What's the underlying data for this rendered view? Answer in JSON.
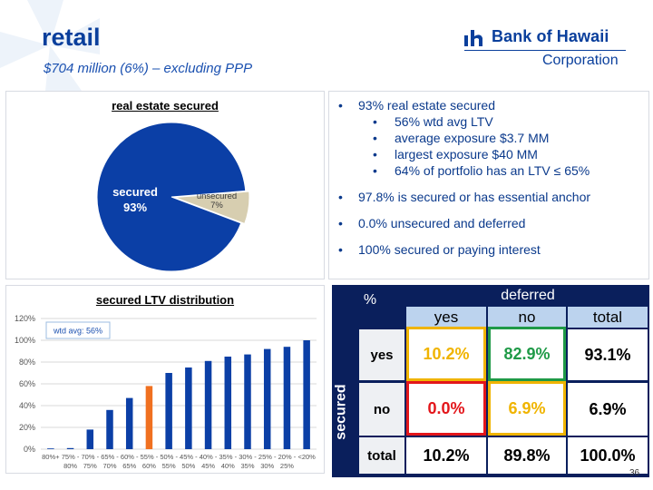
{
  "header": {
    "title": "retail",
    "subtitle": "$704 million (6%) – excluding PPP"
  },
  "logo": {
    "name": "Bank of Hawaii",
    "corporation": "Corporation"
  },
  "bullets": [
    {
      "text": "93% real estate secured",
      "sub": [
        "56% wtd avg LTV",
        "average exposure $3.7 MM",
        "largest exposure $40 MM",
        "64% of portfolio has an LTV ≤ 65%"
      ]
    },
    {
      "text": "97.8% is secured or has essential anchor",
      "sub": []
    },
    {
      "text": "0.0% unsecured and deferred",
      "sub": []
    },
    {
      "text": "100% secured or paying interest",
      "sub": []
    }
  ],
  "chart_data": [
    {
      "type": "pie",
      "title": "real estate secured",
      "slices": [
        {
          "label": "secured",
          "value": 93,
          "value_label": "93%",
          "color": "#0b3fa6"
        },
        {
          "label": "unsecured",
          "value": 7,
          "value_label": "7%",
          "color": "#d7ceb0"
        }
      ]
    },
    {
      "type": "bar",
      "title": "secured LTV distribution",
      "categories": [
        "80%+",
        "75% - 80%",
        "70% - 75%",
        "65% - 70%",
        "60% - 65%",
        "55% - 60%",
        "50% - 55%",
        "45% - 50%",
        "40% - 45%",
        "35% - 40%",
        "30% - 35%",
        "25% - 30%",
        "20% - 25%",
        "<20%"
      ],
      "tick_top": [
        "80%+",
        "75% -",
        "70% -",
        "65% -",
        "60% -",
        "55% -",
        "50% -",
        "45% -",
        "40% -",
        "35% -",
        "30% -",
        "25% -",
        "20% -",
        "<20%"
      ],
      "tick_bottom": [
        "",
        "80%",
        "75%",
        "70%",
        "65%",
        "60%",
        "55%",
        "50%",
        "45%",
        "40%",
        "35%",
        "30%",
        "25%",
        ""
      ],
      "values": [
        0,
        1,
        18,
        36,
        47,
        58,
        70,
        75,
        81,
        85,
        87,
        92,
        94,
        100
      ],
      "highlight_index": 5,
      "bar_color": "#0b3fa6",
      "highlight_color": "#f07020",
      "ylim": [
        0,
        120
      ],
      "yticks": [
        "0%",
        "20%",
        "40%",
        "60%",
        "80%",
        "100%",
        "120%"
      ],
      "grid": true,
      "annotation": "wtd avg: 56%"
    }
  ],
  "matrix": {
    "corner": "%",
    "col_group": "deferred",
    "row_group": "secured",
    "col_headers": [
      "yes",
      "no",
      "total"
    ],
    "rows": [
      {
        "label": "yes",
        "cells": [
          "10.2%",
          "82.9%",
          "93.1%"
        ]
      },
      {
        "label": "no",
        "cells": [
          "0.0%",
          "6.9%",
          "6.9%"
        ]
      },
      {
        "label": "total",
        "cells": [
          "10.2%",
          "89.8%",
          "100.0%"
        ]
      }
    ],
    "colors": {
      "yellow": "#f0b400",
      "green": "#1f9a47",
      "red": "#e3161b",
      "navy": "#0a1f5c"
    }
  },
  "page_number": "36"
}
